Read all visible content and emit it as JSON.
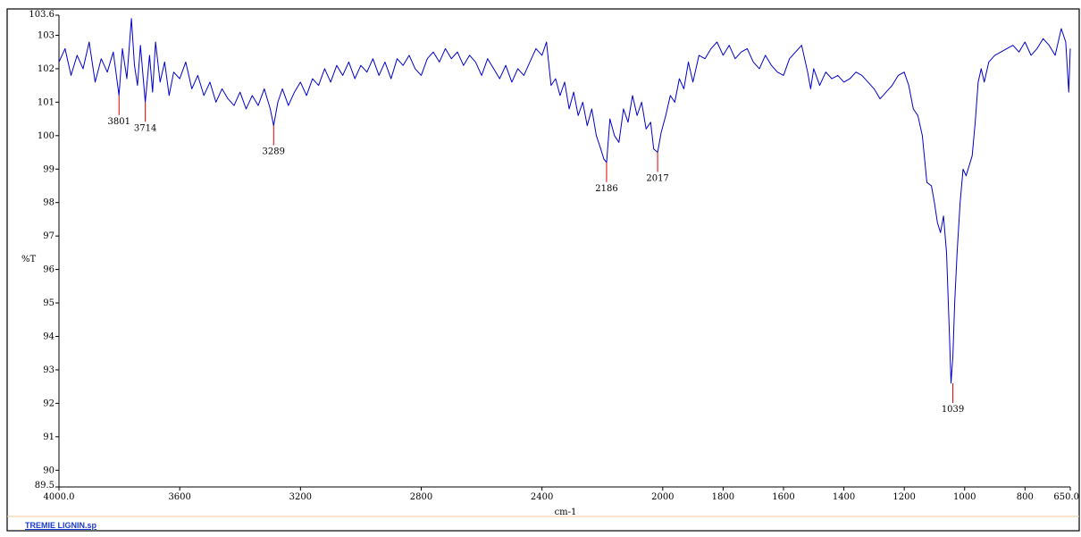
{
  "chart_data": {
    "type": "line",
    "title": "",
    "xlabel": "cm-1",
    "ylabel": "%T",
    "xlim": [
      4000.0,
      650.0
    ],
    "ylim": [
      89.5,
      103.6
    ],
    "x_reversed": true,
    "grid": false,
    "legend": "none",
    "x_ticks": [
      {
        "value": 4000,
        "label": "4000.0"
      },
      {
        "value": 3600,
        "label": "3600"
      },
      {
        "value": 3200,
        "label": "3200"
      },
      {
        "value": 2800,
        "label": "2800"
      },
      {
        "value": 2400,
        "label": "2400"
      },
      {
        "value": 2000,
        "label": "2000"
      },
      {
        "value": 1800,
        "label": "1800"
      },
      {
        "value": 1600,
        "label": "1600"
      },
      {
        "value": 1400,
        "label": "1400"
      },
      {
        "value": 1200,
        "label": "1200"
      },
      {
        "value": 1000,
        "label": "1000"
      },
      {
        "value": 800,
        "label": "800"
      },
      {
        "value": 650,
        "label": "650.0"
      }
    ],
    "y_ticks": [
      {
        "value": 103.6,
        "label": "103.6"
      },
      {
        "value": 103,
        "label": "103"
      },
      {
        "value": 102,
        "label": "102"
      },
      {
        "value": 101,
        "label": "101"
      },
      {
        "value": 100,
        "label": "100"
      },
      {
        "value": 99,
        "label": "99"
      },
      {
        "value": 98,
        "label": "98"
      },
      {
        "value": 97,
        "label": "97"
      },
      {
        "value": 96,
        "label": "96"
      },
      {
        "value": 95,
        "label": "95"
      },
      {
        "value": 94,
        "label": "94"
      },
      {
        "value": 93,
        "label": "93"
      },
      {
        "value": 92,
        "label": "92"
      },
      {
        "value": 91,
        "label": "91"
      },
      {
        "value": 90,
        "label": "90"
      },
      {
        "value": 89.5,
        "label": "89.5"
      }
    ],
    "series": [
      {
        "color": "#0000cc",
        "x": [
          4000,
          3980,
          3960,
          3940,
          3920,
          3900,
          3880,
          3860,
          3840,
          3820,
          3801,
          3790,
          3775,
          3760,
          3750,
          3740,
          3730,
          3714,
          3700,
          3690,
          3680,
          3665,
          3650,
          3635,
          3620,
          3600,
          3580,
          3560,
          3540,
          3520,
          3500,
          3480,
          3460,
          3440,
          3420,
          3400,
          3380,
          3360,
          3340,
          3320,
          3300,
          3289,
          3275,
          3260,
          3240,
          3220,
          3200,
          3180,
          3160,
          3140,
          3120,
          3100,
          3080,
          3060,
          3040,
          3020,
          3000,
          2980,
          2960,
          2940,
          2920,
          2900,
          2880,
          2860,
          2840,
          2820,
          2800,
          2780,
          2760,
          2740,
          2720,
          2700,
          2680,
          2660,
          2640,
          2620,
          2600,
          2580,
          2560,
          2540,
          2520,
          2500,
          2480,
          2460,
          2440,
          2420,
          2400,
          2385,
          2370,
          2355,
          2340,
          2325,
          2310,
          2295,
          2280,
          2265,
          2250,
          2235,
          2220,
          2205,
          2195,
          2186,
          2175,
          2160,
          2145,
          2130,
          2115,
          2100,
          2085,
          2070,
          2055,
          2040,
          2030,
          2017,
          2005,
          1990,
          1975,
          1960,
          1945,
          1930,
          1915,
          1900,
          1880,
          1860,
          1840,
          1820,
          1800,
          1780,
          1760,
          1740,
          1720,
          1700,
          1680,
          1660,
          1640,
          1620,
          1600,
          1580,
          1560,
          1540,
          1520,
          1510,
          1500,
          1480,
          1460,
          1440,
          1420,
          1400,
          1380,
          1360,
          1340,
          1320,
          1300,
          1280,
          1260,
          1240,
          1220,
          1200,
          1185,
          1170,
          1155,
          1140,
          1125,
          1110,
          1100,
          1090,
          1080,
          1070,
          1060,
          1050,
          1045,
          1039,
          1033,
          1025,
          1015,
          1005,
          995,
          985,
          975,
          965,
          955,
          945,
          935,
          920,
          900,
          880,
          860,
          840,
          820,
          800,
          780,
          760,
          740,
          720,
          700,
          680,
          665,
          655,
          650
        ],
        "y": [
          102.2,
          102.6,
          101.8,
          102.4,
          102.0,
          102.8,
          101.6,
          102.3,
          101.9,
          102.5,
          101.2,
          102.6,
          101.7,
          103.5,
          102.1,
          101.5,
          102.7,
          101.0,
          102.4,
          101.3,
          102.8,
          101.6,
          102.2,
          101.2,
          101.9,
          101.7,
          102.2,
          101.4,
          101.8,
          101.2,
          101.6,
          101.0,
          101.4,
          101.1,
          100.9,
          101.3,
          100.8,
          101.2,
          100.9,
          101.4,
          100.8,
          100.3,
          101.0,
          101.4,
          100.9,
          101.3,
          101.6,
          101.2,
          101.7,
          101.5,
          102.0,
          101.6,
          102.1,
          101.8,
          102.2,
          101.7,
          102.1,
          101.9,
          102.3,
          101.8,
          102.2,
          101.7,
          102.3,
          102.1,
          102.4,
          102.0,
          101.8,
          102.3,
          102.5,
          102.2,
          102.6,
          102.3,
          102.5,
          102.1,
          102.4,
          102.2,
          101.8,
          102.3,
          102.0,
          101.7,
          102.1,
          101.6,
          102.0,
          101.8,
          102.2,
          102.6,
          102.4,
          102.8,
          101.5,
          101.7,
          101.2,
          101.6,
          100.8,
          101.3,
          100.6,
          101.0,
          100.3,
          100.8,
          100.0,
          99.6,
          99.3,
          99.2,
          100.5,
          100.0,
          99.8,
          100.8,
          100.4,
          101.2,
          100.6,
          101.0,
          100.2,
          100.4,
          99.6,
          99.5,
          100.1,
          100.6,
          101.2,
          101.0,
          101.7,
          101.4,
          102.2,
          101.6,
          102.4,
          102.3,
          102.6,
          102.8,
          102.4,
          102.7,
          102.3,
          102.5,
          102.6,
          102.2,
          102.0,
          102.4,
          102.1,
          101.9,
          101.8,
          102.3,
          102.5,
          102.7,
          101.9,
          101.4,
          102.0,
          101.5,
          101.9,
          101.7,
          101.8,
          101.6,
          101.7,
          101.9,
          101.8,
          101.6,
          101.4,
          101.1,
          101.3,
          101.5,
          101.8,
          101.9,
          101.5,
          100.8,
          100.6,
          100.0,
          98.6,
          98.5,
          98.0,
          97.4,
          97.1,
          97.6,
          96.5,
          94.0,
          92.6,
          93.4,
          95.0,
          96.5,
          98.0,
          99.0,
          98.8,
          99.1,
          99.4,
          100.4,
          101.6,
          102.0,
          101.6,
          102.2,
          102.4,
          102.5,
          102.6,
          102.7,
          102.5,
          102.8,
          102.4,
          102.6,
          102.9,
          102.7,
          102.4,
          103.2,
          102.8,
          101.3,
          102.6
        ]
      }
    ],
    "peak_labels": [
      {
        "x": 3801,
        "y": 101.2,
        "label": "3801"
      },
      {
        "x": 3714,
        "y": 101.0,
        "label": "3714"
      },
      {
        "x": 3289,
        "y": 100.3,
        "label": "3289"
      },
      {
        "x": 2186,
        "y": 99.2,
        "label": "2186"
      },
      {
        "x": 2017,
        "y": 99.5,
        "label": "2017"
      },
      {
        "x": 1039,
        "y": 92.6,
        "label": "1039"
      }
    ]
  },
  "file_label": "TREMIE LIGNIN.sp"
}
